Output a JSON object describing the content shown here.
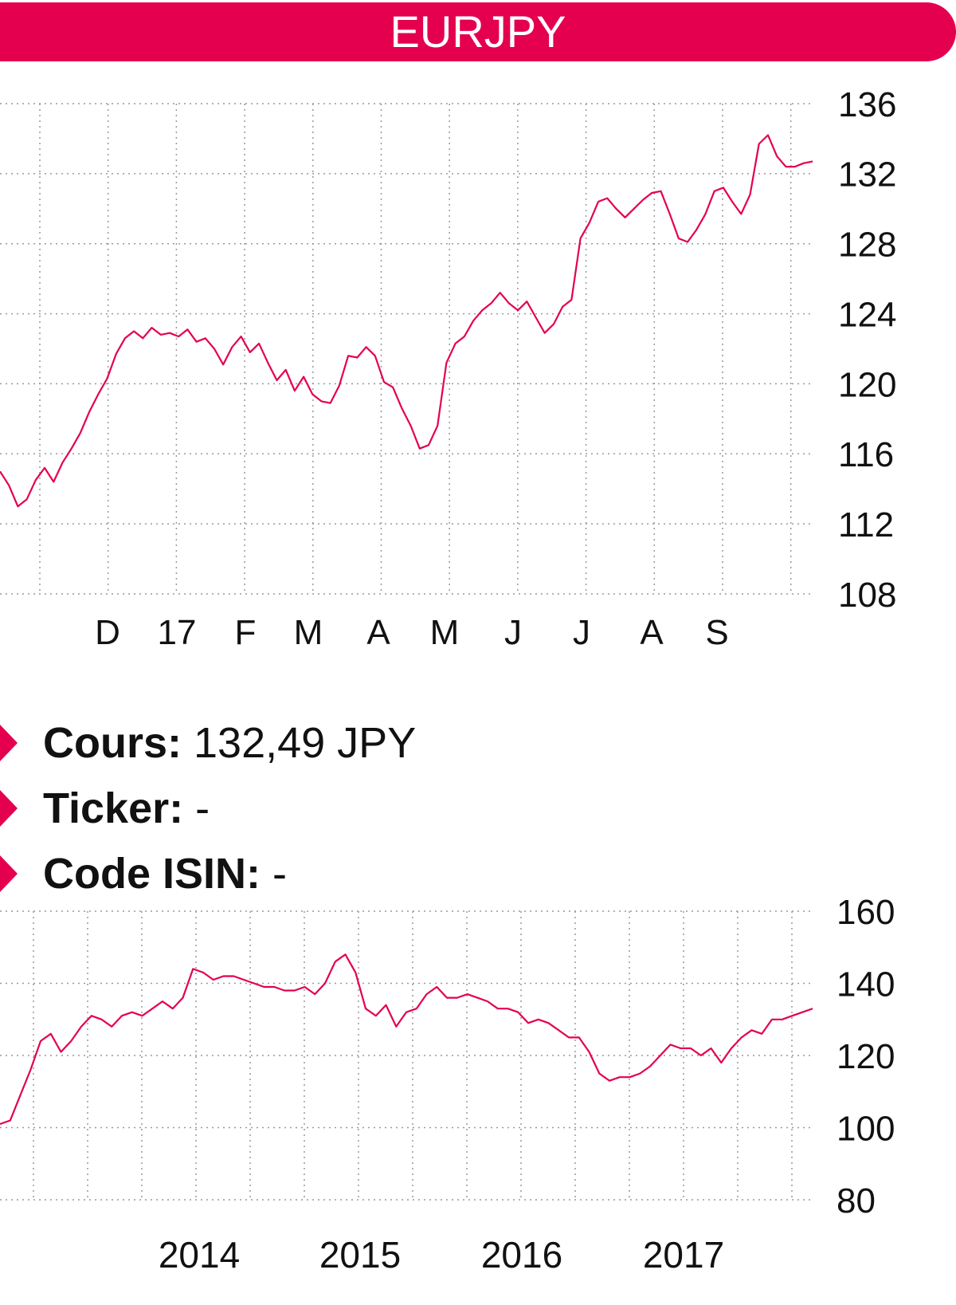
{
  "title": "EURJPY",
  "info": {
    "price_label": "Cours:",
    "price_value": "132,49 JPY",
    "ticker_label": "Ticker:",
    "ticker_value": "-",
    "isin_label": "Code ISIN:",
    "isin_value": "-"
  },
  "colors": {
    "accent": "#e4004f",
    "line": "#e4004f",
    "grid": "#999999",
    "text": "#111111"
  },
  "chart_data": [
    {
      "type": "line",
      "title": "",
      "xlabel": "",
      "ylabel": "",
      "ylim": [
        108,
        136
      ],
      "yticks": [
        "136",
        "132",
        "128",
        "124",
        "120",
        "116",
        "112",
        "108"
      ],
      "y_axis_side": "right",
      "x_tick_labels": [
        "D",
        "17",
        "F",
        "M",
        "A",
        "M",
        "J",
        "J",
        "A",
        "S"
      ],
      "grid": true,
      "series": [
        {
          "values": [
            115.0,
            114.2,
            113.0,
            113.4,
            114.5,
            115.2,
            114.4,
            115.5,
            116.3,
            117.2,
            118.4,
            119.4,
            120.3,
            121.7,
            122.6,
            123.0,
            122.6,
            123.2,
            122.8,
            122.9,
            122.7,
            123.1,
            122.4,
            122.6,
            122.0,
            121.1,
            122.1,
            122.7,
            121.8,
            122.3,
            121.2,
            120.2,
            120.8,
            119.6,
            120.4,
            119.4,
            119.0,
            118.9,
            119.9,
            121.6,
            121.5,
            122.1,
            121.6,
            120.1,
            119.8,
            118.6,
            117.6,
            116.3,
            116.5,
            117.6,
            121.2,
            122.3,
            122.7,
            123.6,
            124.2,
            124.6,
            125.2,
            124.6,
            124.2,
            124.7,
            123.8,
            122.9,
            123.4,
            124.4,
            124.8,
            128.3,
            129.2,
            130.4,
            130.6,
            130.0,
            129.5,
            130.0,
            130.5,
            130.9,
            131.0,
            129.7,
            128.3,
            128.1,
            128.8,
            129.7,
            131.0,
            131.2,
            130.4,
            129.7,
            130.8,
            133.7,
            134.2,
            133.0,
            132.4,
            132.4,
            132.6,
            132.7
          ]
        }
      ]
    },
    {
      "type": "line",
      "title": "",
      "xlabel": "",
      "ylabel": "",
      "ylim": [
        80,
        160
      ],
      "yticks": [
        "160",
        "140",
        "120",
        "100",
        "80"
      ],
      "y_axis_side": "right",
      "x_tick_labels": [
        "2014",
        "2015",
        "2016",
        "2017"
      ],
      "grid": true,
      "series": [
        {
          "values": [
            101,
            102,
            109,
            116,
            124,
            126,
            121,
            124,
            128,
            131,
            130,
            128,
            131,
            132,
            131,
            133,
            135,
            133,
            136,
            144,
            143,
            141,
            142,
            142,
            141,
            140,
            139,
            139,
            138,
            138,
            139,
            137,
            140,
            146,
            148,
            143,
            133,
            131,
            134,
            128,
            132,
            133,
            137,
            139,
            136,
            136,
            137,
            136,
            135,
            133,
            133,
            132,
            129,
            130,
            129,
            127,
            125,
            125,
            121,
            115,
            113,
            114,
            114,
            115,
            117,
            120,
            123,
            122,
            122,
            120,
            122,
            118,
            122,
            125,
            127,
            126,
            130,
            130,
            131,
            132,
            133
          ]
        }
      ]
    }
  ]
}
